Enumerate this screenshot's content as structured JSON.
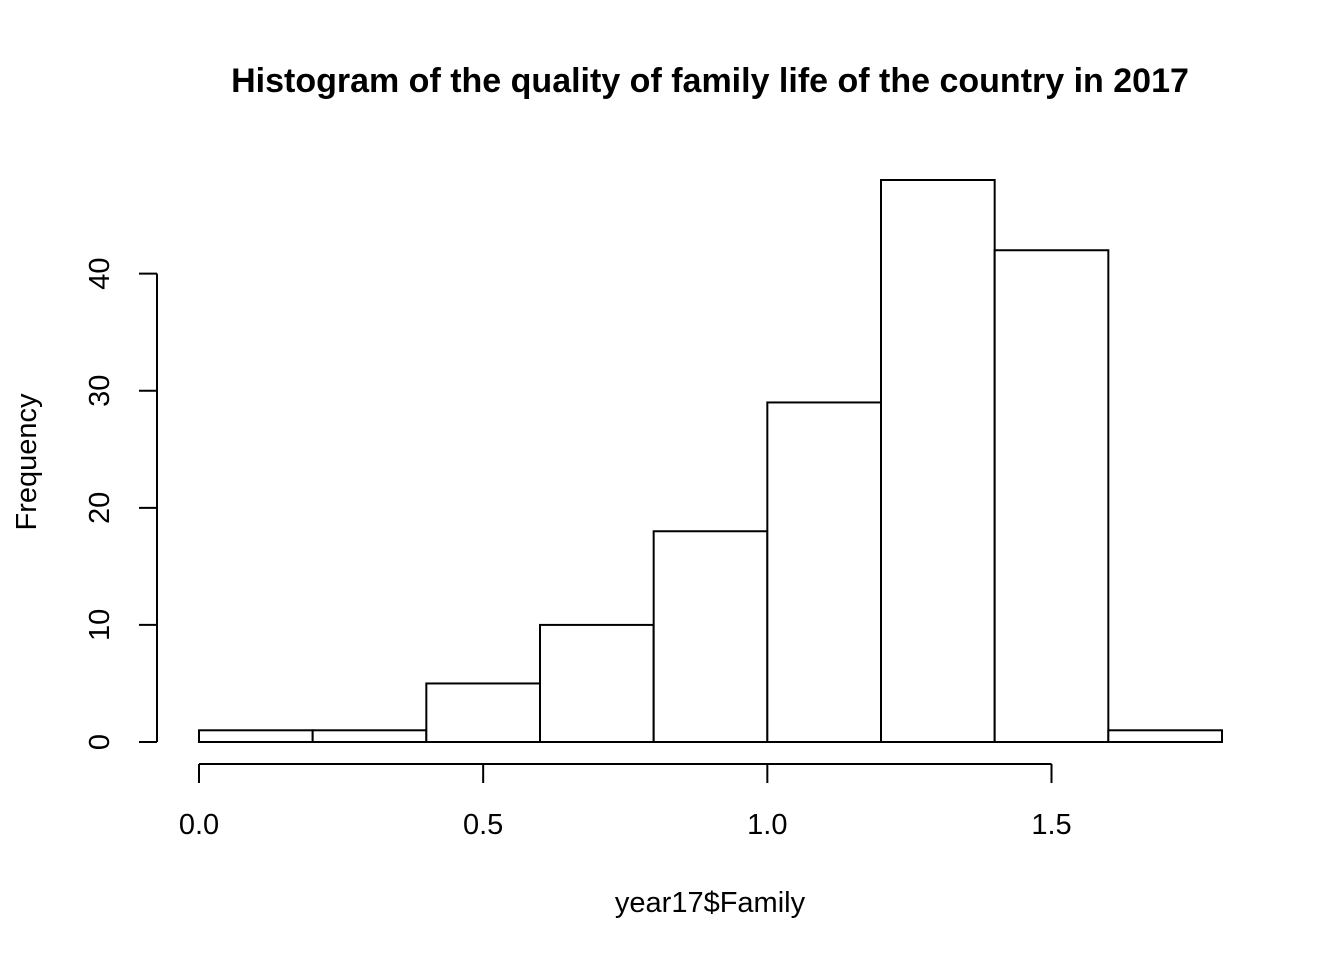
{
  "chart_data": {
    "type": "bar",
    "title": "Histogram of the quality of family life of the country in 2017",
    "xlabel": "year17$Family",
    "ylabel": "Frequency",
    "bins": [
      {
        "x0": 0.0,
        "x1": 0.2,
        "count": 1
      },
      {
        "x0": 0.2,
        "x1": 0.4,
        "count": 1
      },
      {
        "x0": 0.4,
        "x1": 0.6,
        "count": 5
      },
      {
        "x0": 0.6,
        "x1": 0.8,
        "count": 10
      },
      {
        "x0": 0.8,
        "x1": 1.0,
        "count": 18
      },
      {
        "x0": 1.0,
        "x1": 1.2,
        "count": 29
      },
      {
        "x0": 1.2,
        "x1": 1.4,
        "count": 48
      },
      {
        "x0": 1.4,
        "x1": 1.6,
        "count": 42
      },
      {
        "x0": 1.6,
        "x1": 1.8,
        "count": 1
      }
    ],
    "xlim": [
      0.0,
      1.8
    ],
    "ylim": [
      0,
      48
    ],
    "x_ticks": [
      0.0,
      0.5,
      1.0,
      1.5
    ],
    "x_tick_labels": [
      "0.0",
      "0.5",
      "1.0",
      "1.5"
    ],
    "y_ticks": [
      0,
      10,
      20,
      30,
      40
    ],
    "y_tick_labels": [
      "0",
      "10",
      "20",
      "30",
      "40"
    ],
    "bar_fill": "#ffffff",
    "bar_stroke": "#000000",
    "grid": false
  }
}
